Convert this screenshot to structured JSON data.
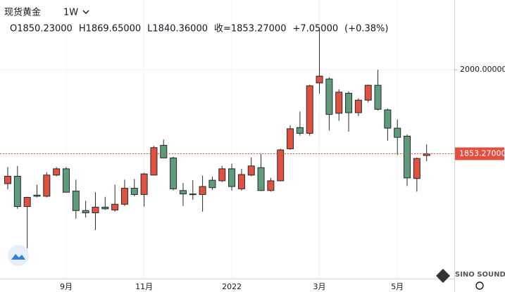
{
  "chart_data": {
    "type": "candlestick",
    "header": {
      "symbol": "现货黄金",
      "interval": "1W",
      "stats": [
        "O1850.23000",
        "H1869.65000",
        "L1840.36000",
        "收=1853.27000",
        "+7.05000",
        "(+0.38%)"
      ]
    },
    "categories": [
      null,
      null,
      null,
      null,
      null,
      null,
      "9月",
      null,
      null,
      null,
      null,
      null,
      null,
      null,
      "11月",
      null,
      null,
      null,
      null,
      null,
      null,
      null,
      null,
      "2022",
      null,
      null,
      null,
      null,
      null,
      null,
      null,
      null,
      "3月",
      null,
      null,
      null,
      null,
      null,
      null,
      null,
      "5月",
      null,
      null,
      null
    ],
    "open": [
      1801,
      1814,
      1761,
      1781,
      1779,
      1816,
      1827,
      1788,
      1754,
      1750,
      1760,
      1755,
      1765,
      1793,
      1782,
      1816,
      1868,
      1846,
      1789,
      1783,
      1782,
      1807,
      1806,
      1827,
      1792,
      1816,
      1829,
      1789,
      1806,
      1862,
      1899,
      1889,
      1977,
      1984,
      1924,
      1959,
      1925,
      1947,
      1973,
      1930,
      1898,
      1884,
      1810,
      1850.23
    ],
    "high": [
      1830,
      1832,
      1778,
      1799,
      1821,
      1830,
      1830,
      1808,
      1771,
      1786,
      1778,
      1799,
      1808,
      1809,
      1820,
      1867,
      1878,
      1848,
      1802,
      1807,
      1815,
      1813,
      1832,
      1836,
      1827,
      1847,
      1853,
      1811,
      1862,
      1903,
      1927,
      1974,
      2070,
      1987,
      1966,
      1962,
      1950,
      1974,
      2000,
      1932,
      1913,
      1887,
      1847,
      1869.65
    ],
    "low": [
      1791,
      1757,
      1688,
      1777,
      1777,
      1814,
      1786,
      1740,
      1742,
      1720,
      1755,
      1752,
      1762,
      1779,
      1761,
      1816,
      1845,
      1789,
      1762,
      1773,
      1752,
      1790,
      1804,
      1789,
      1789,
      1814,
      1788,
      1787,
      1805,
      1860,
      1885,
      1885,
      1958,
      1894,
      1911,
      1892,
      1919,
      1943,
      1929,
      1876,
      1851,
      1797,
      1787,
      1840.36
    ],
    "close": [
      1814,
      1761,
      1777,
      1779,
      1816,
      1827,
      1786,
      1754,
      1750,
      1760,
      1757,
      1765,
      1793,
      1782,
      1818,
      1864,
      1846,
      1792,
      1783,
      1782,
      1796,
      1794,
      1827,
      1796,
      1817,
      1832,
      1789,
      1806,
      1860,
      1897,
      1889,
      1972,
      1989,
      1922,
      1961,
      1925,
      1947,
      1973,
      1931,
      1898,
      1882,
      1811,
      1845,
      1853.27
    ],
    "up_color": "#e0523f",
    "down_color": "#5f9c7c",
    "ylim": [
      1635,
      2122
    ],
    "yticks": [
      {
        "value": 2000,
        "label": "2000.00000"
      }
    ],
    "last_price": {
      "value": 1853.27,
      "label": "1853.27000"
    },
    "grid": true,
    "watermark": "SINO SOUND"
  }
}
